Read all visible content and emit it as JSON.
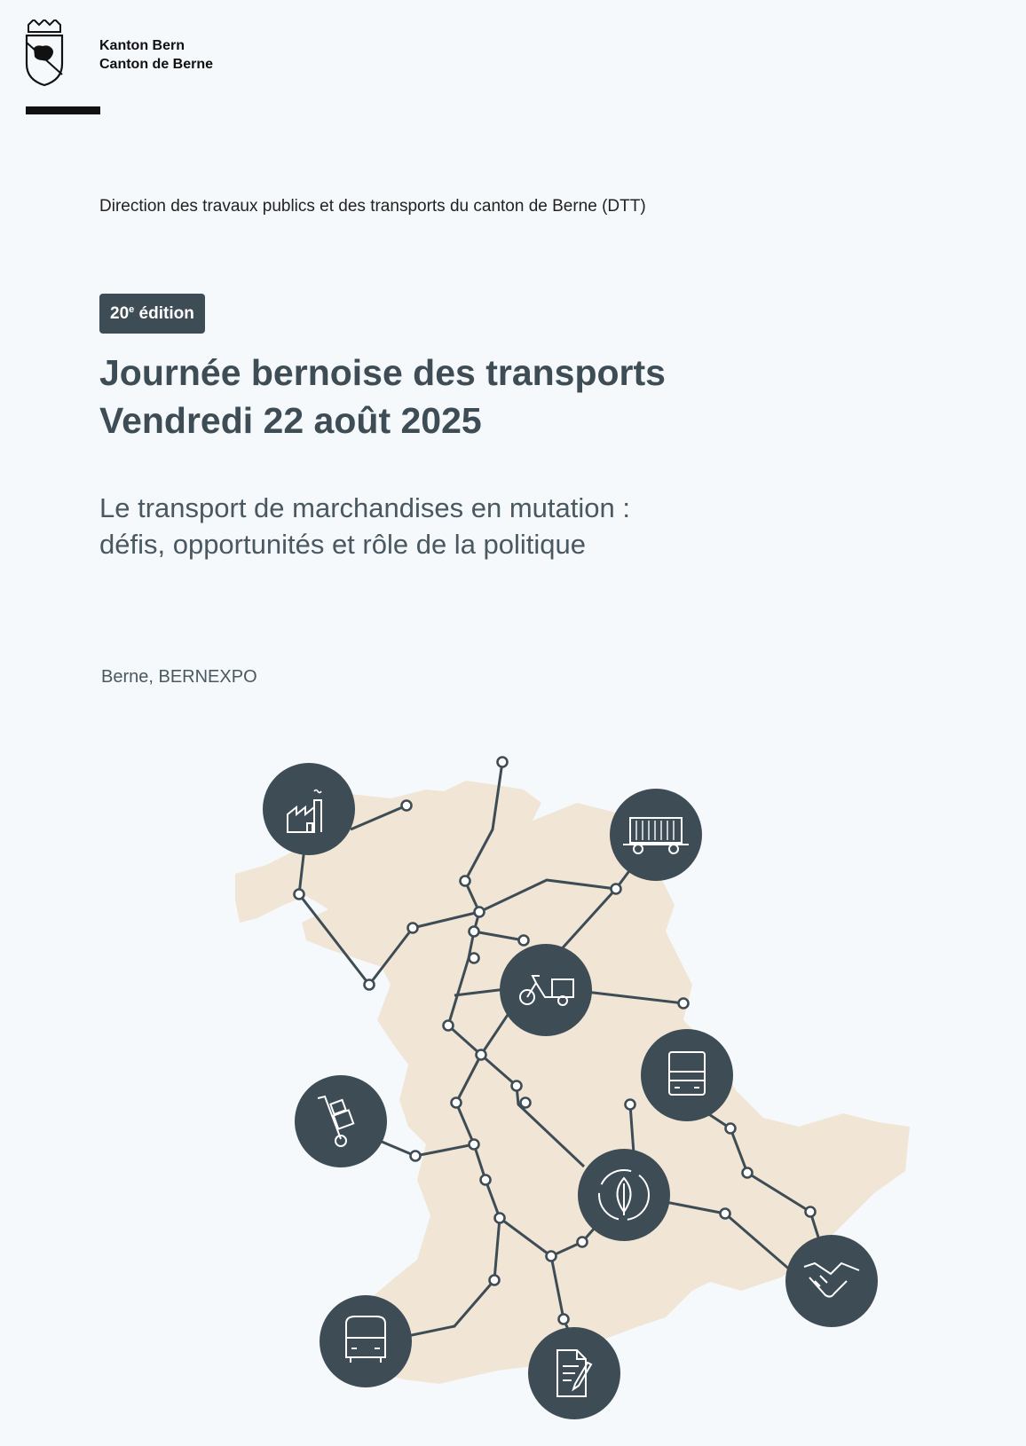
{
  "header": {
    "org_line1": "Kanton Bern",
    "org_line2": "Canton de Berne",
    "department": "Direction des travaux publics et des transports du canton de Berne (DTT)"
  },
  "event": {
    "edition_number": "20",
    "edition_suffix": "e",
    "edition_label": "édition",
    "title_line1": "Journée bernoise des transports",
    "title_line2": "Vendredi 22 août 2025",
    "subtitle_line1": "Le transport de marchandises en mutation :",
    "subtitle_line2": "défis, opportunités et rôle de la politique",
    "venue": "Berne, BERNEXPO"
  },
  "colors": {
    "background": "#f5f9fc",
    "text_dark": "#3e4c55",
    "map_fill": "#f1e6d6",
    "network_line": "#3e4c55",
    "icon_circle": "#3e4c55"
  },
  "map_icons": [
    "factory-icon",
    "freight-wagon-icon",
    "cargo-bike-icon",
    "truck-icon",
    "hand-truck-icon",
    "sustainability-leaf-icon",
    "handshake-icon",
    "delivery-van-icon",
    "document-icon"
  ]
}
